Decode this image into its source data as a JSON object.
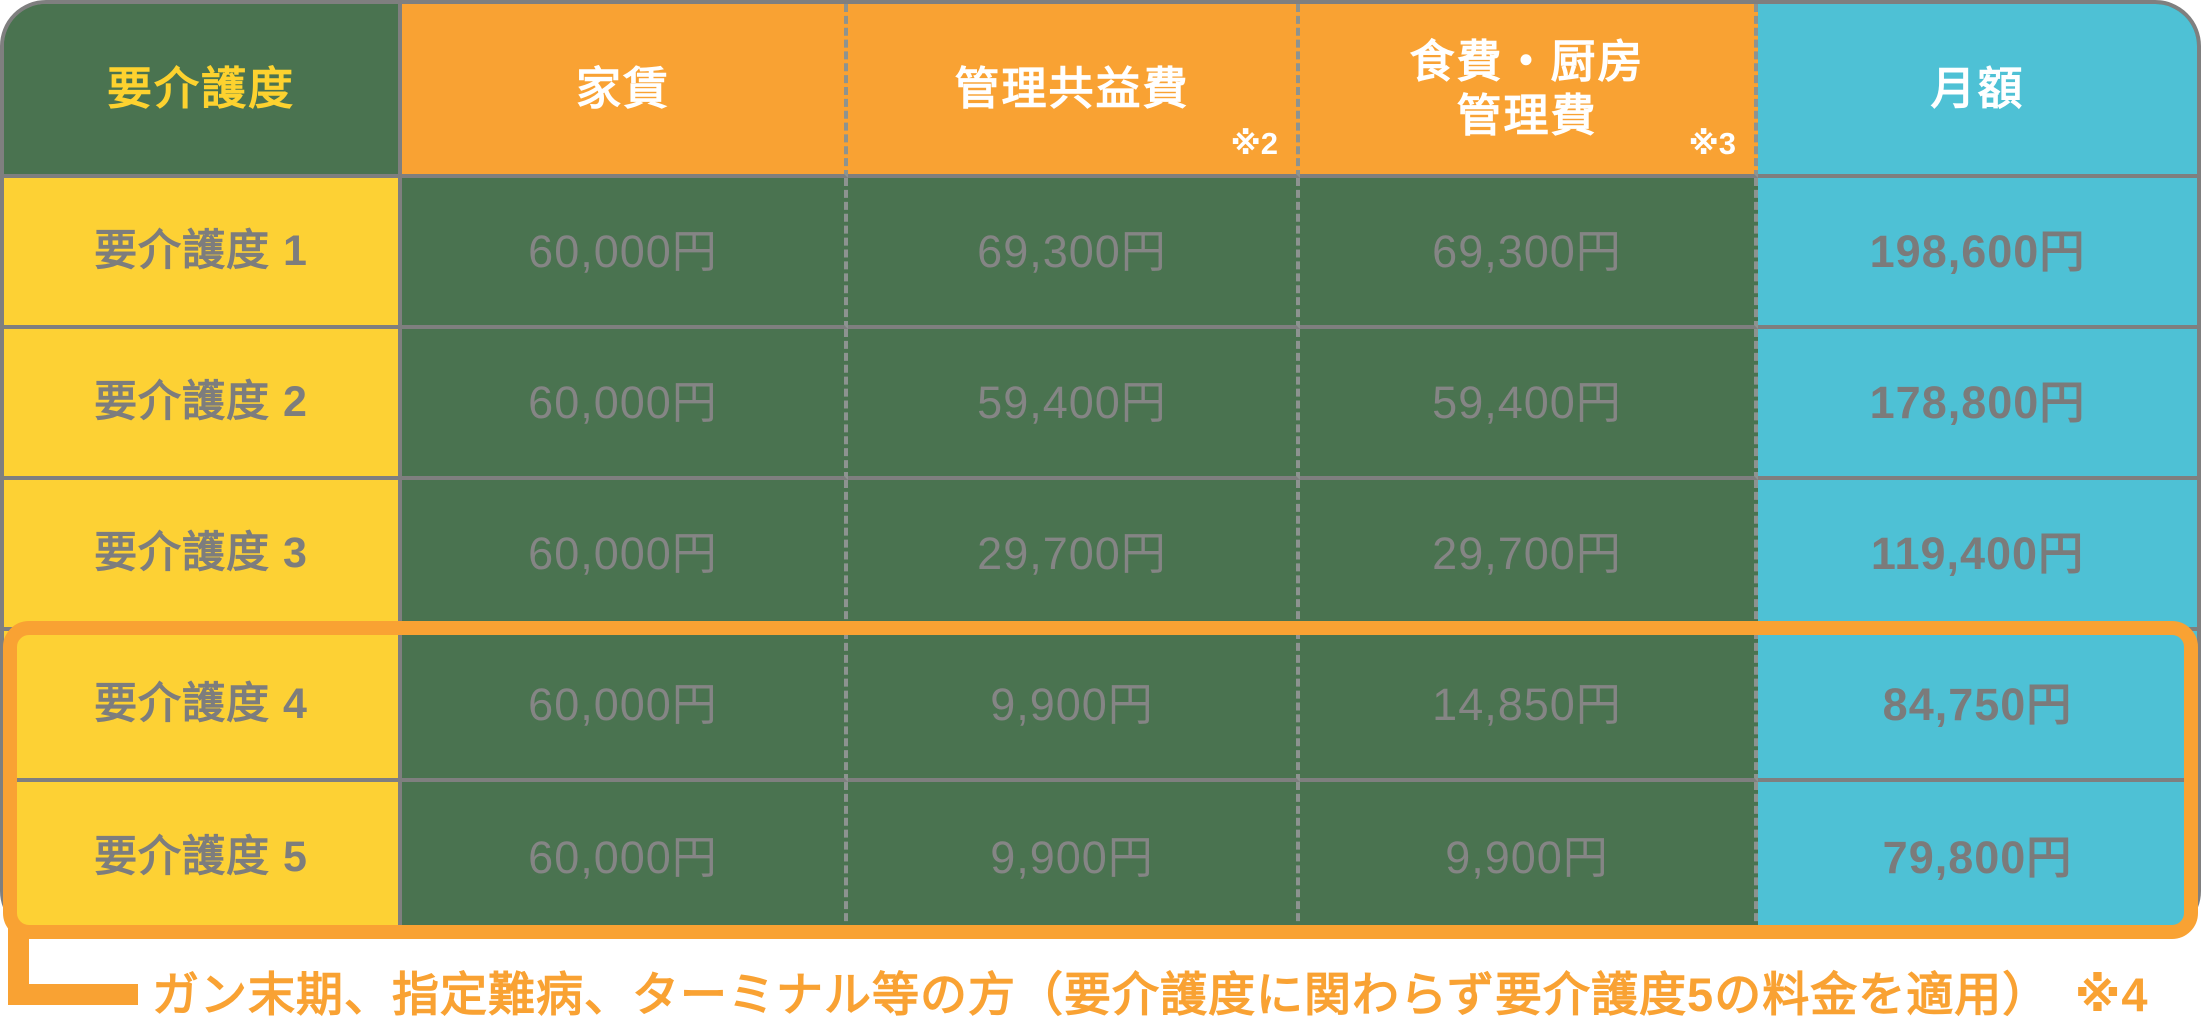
{
  "colors": {
    "green": "#4a7350",
    "orange": "#f9a233",
    "yellow": "#fdd134",
    "cyan": "#4ec1d5",
    "border_gray": "#7f7f7f",
    "value_text_gray": "#858585",
    "label_text_gray": "#7d7d7d",
    "header_yellow_text": "#fdd22f",
    "white": "#ffffff"
  },
  "header": {
    "care_level": "要介護度",
    "rent": "家賃",
    "management_fee": "管理共益費",
    "management_fee_note": "※2",
    "food_fee_line1": "食費・厨房",
    "food_fee_line2": "管理費",
    "food_fee_note": "※3",
    "monthly": "月額"
  },
  "rows": [
    {
      "label": "要介護度 1",
      "rent": "60,000円",
      "management": "69,300円",
      "food": "69,300円",
      "monthly": "198,600円"
    },
    {
      "label": "要介護度 2",
      "rent": "60,000円",
      "management": "59,400円",
      "food": "59,400円",
      "monthly": "178,800円"
    },
    {
      "label": "要介護度 3",
      "rent": "60,000円",
      "management": "29,700円",
      "food": "29,700円",
      "monthly": "119,400円"
    },
    {
      "label": "要介護度 4",
      "rent": "60,000円",
      "management": "9,900円",
      "food": "14,850円",
      "monthly": "84,750円"
    },
    {
      "label": "要介護度 5",
      "rent": "60,000円",
      "management": "9,900円",
      "food": "9,900円",
      "monthly": "79,800円"
    }
  ],
  "annotation": "ガン末期、指定難病、ターミナル等の方（要介護度に関わらず要介護度5の料金を適用）　※4",
  "chart_data": {
    "type": "table",
    "title": "要介護度別 月額料金表",
    "columns": [
      "要介護度",
      "家賃",
      "管理共益費 ※2",
      "食費・厨房管理費 ※3",
      "月額"
    ],
    "rows": [
      [
        "要介護度 1",
        "60,000円",
        "69,300円",
        "69,300円",
        "198,600円"
      ],
      [
        "要介護度 2",
        "60,000円",
        "59,400円",
        "59,400円",
        "178,800円"
      ],
      [
        "要介護度 3",
        "60,000円",
        "29,700円",
        "29,700円",
        "119,400円"
      ],
      [
        "要介護度 4",
        "60,000円",
        "9,900円",
        "14,850円",
        "84,750円"
      ],
      [
        "要介護度 5",
        "60,000円",
        "9,900円",
        "9,900円",
        "79,800円"
      ]
    ],
    "highlighted_rows": [
      "要介護度 4",
      "要介護度 5"
    ],
    "footnote": "ガン末期、指定難病、ターミナル等の方（要介護度に関わらず要介護度5の料金を適用）　※4",
    "legend_position": "none",
    "grid": true
  }
}
